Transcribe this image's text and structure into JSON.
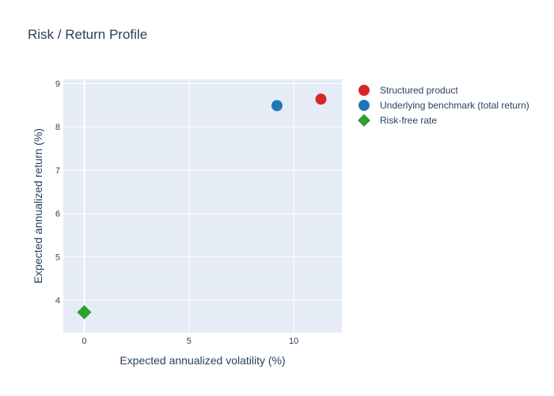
{
  "chart_data": {
    "type": "scatter",
    "title": "Risk / Return Profile",
    "xlabel": "Expected annualized volatility (%)",
    "ylabel": "Expected annualized return (%)",
    "xlim": [
      -1,
      12.3
    ],
    "ylim": [
      3.25,
      9.1
    ],
    "xticks": [
      0,
      5,
      10
    ],
    "yticks": [
      4,
      5,
      6,
      7,
      8,
      9
    ],
    "grid": true,
    "legend_position": "right",
    "series": [
      {
        "name": "Structured product",
        "marker": "circle",
        "color": "#d62728",
        "points": [
          {
            "x": 11.3,
            "y": 8.64
          }
        ]
      },
      {
        "name": "Underlying benchmark (total return)",
        "marker": "circle",
        "color": "#1f77b4",
        "points": [
          {
            "x": 9.2,
            "y": 8.49
          }
        ]
      },
      {
        "name": "Risk-free rate",
        "marker": "diamond",
        "color": "#2ca02c",
        "points": [
          {
            "x": 0,
            "y": 3.72
          }
        ]
      }
    ]
  },
  "colors": {
    "plot_background": "#e5ecf6",
    "grid": "#ffffff",
    "text": "#2a3f5f"
  }
}
